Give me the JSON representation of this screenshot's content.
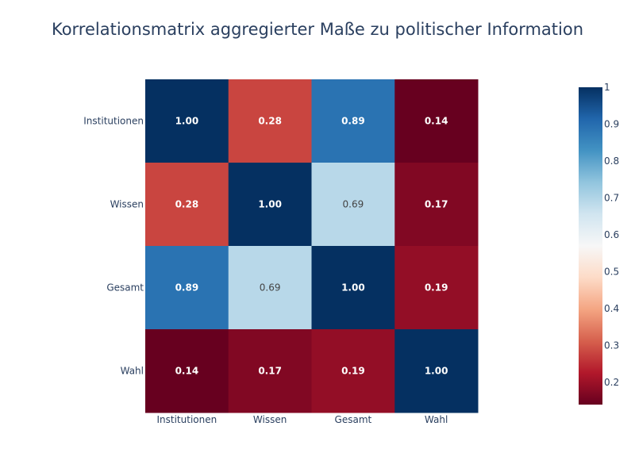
{
  "chart_data": {
    "type": "heatmap",
    "title": "Korrelationsmatrix aggregierter Maße zu politischer Information",
    "x_categories": [
      "Institutionen",
      "Wissen",
      "Gesamt",
      "Wahl"
    ],
    "y_categories": [
      "Institutionen",
      "Wissen",
      "Gesamt",
      "Wahl"
    ],
    "z": [
      [
        1.0,
        0.28,
        0.89,
        0.14
      ],
      [
        0.28,
        1.0,
        0.69,
        0.17
      ],
      [
        0.89,
        0.69,
        1.0,
        0.19
      ],
      [
        0.14,
        0.17,
        0.19,
        1.0
      ]
    ],
    "cell_labels": [
      [
        "1.00",
        "0.28",
        "0.89",
        "0.14"
      ],
      [
        "0.28",
        "1.00",
        "0.69",
        "0.17"
      ],
      [
        "0.89",
        "0.69",
        "1.00",
        "0.19"
      ],
      [
        "0.14",
        "0.17",
        "0.19",
        "1.00"
      ]
    ],
    "colorscale": "RdBu",
    "zmin": 0.14,
    "zmax": 1.0,
    "colorbar": {
      "tick_values": [
        1,
        0.9,
        0.8,
        0.7,
        0.6,
        0.5,
        0.4,
        0.3,
        0.2
      ],
      "tick_labels": [
        "1",
        "0.9",
        "0.8",
        "0.7",
        "0.6",
        "0.5",
        "0.4",
        "0.3",
        "0.2"
      ]
    },
    "colors": {
      "title": "#2a3f5f",
      "axis_text": "#2a3f5f",
      "label_dark_text": "#444444",
      "label_light_text": "#ffffff"
    }
  }
}
